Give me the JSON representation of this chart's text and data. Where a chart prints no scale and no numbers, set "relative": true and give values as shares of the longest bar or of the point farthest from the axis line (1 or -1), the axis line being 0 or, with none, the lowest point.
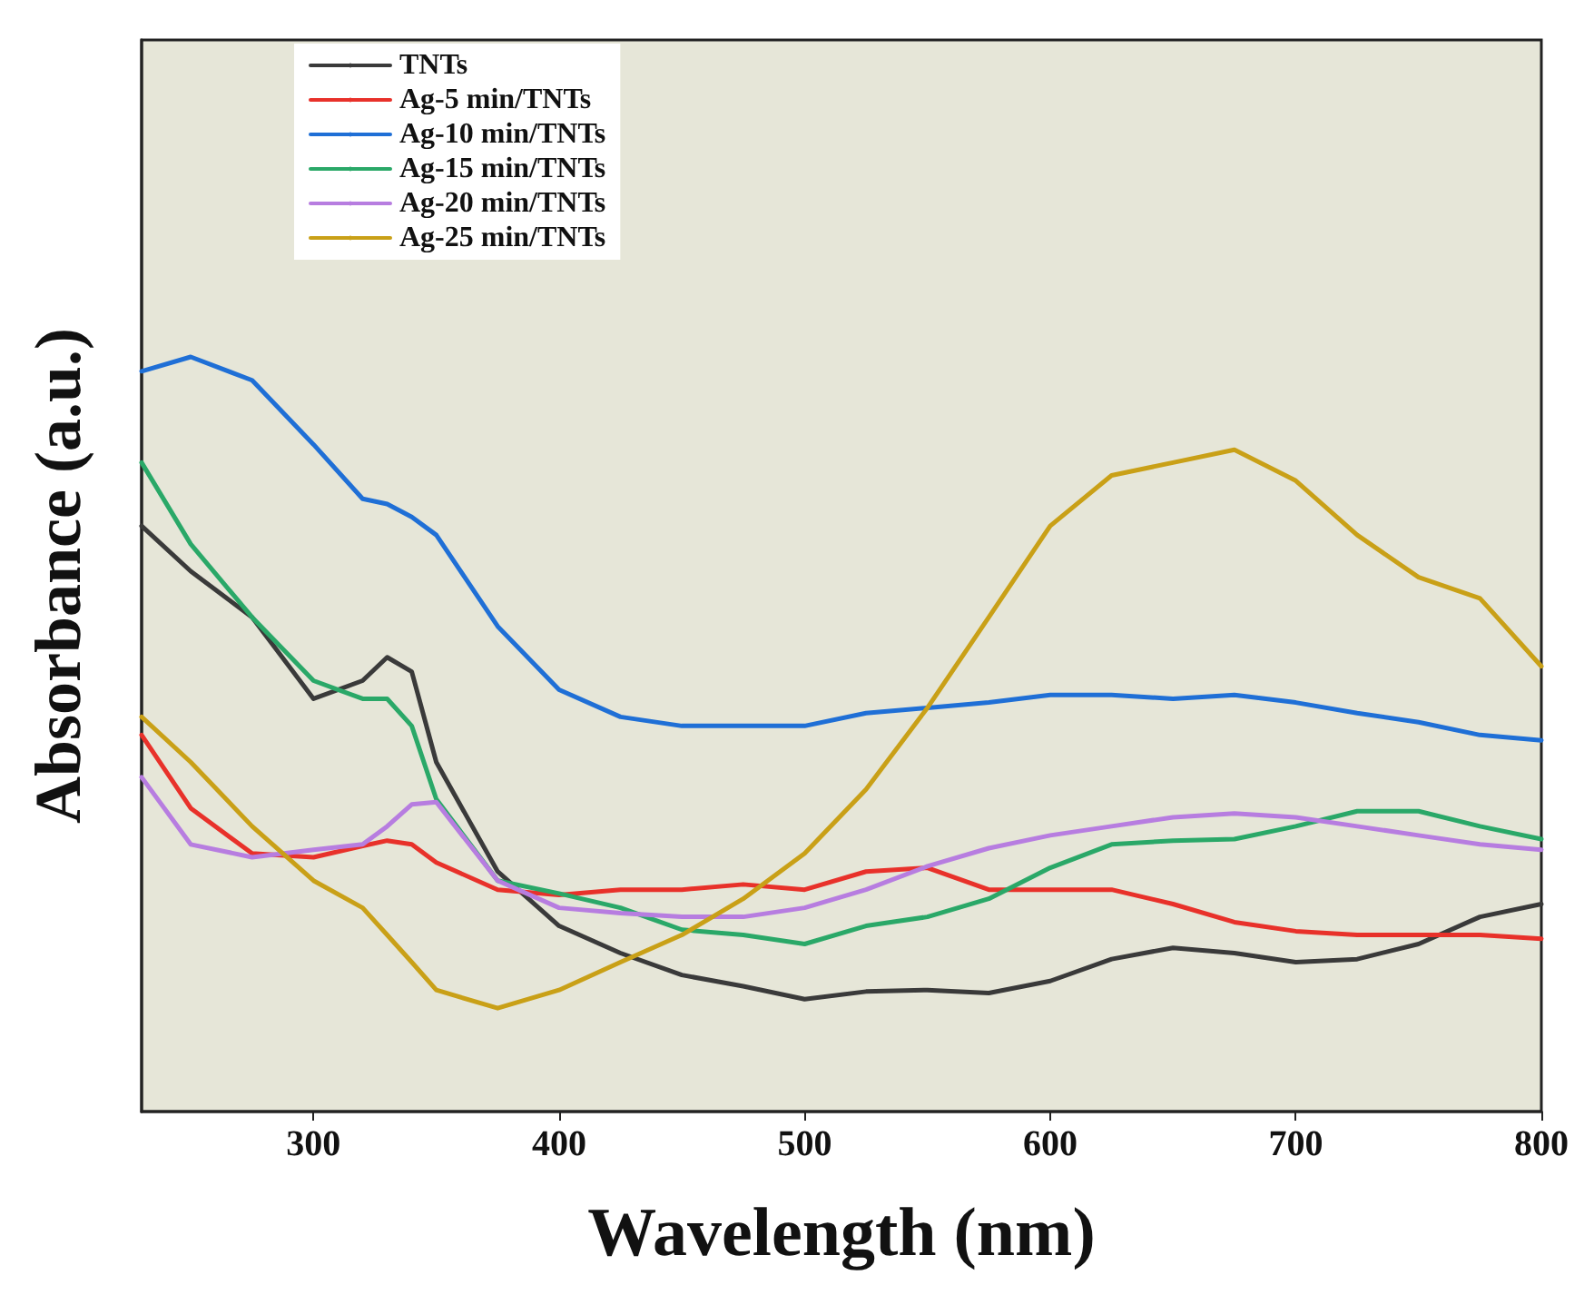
{
  "chart_data": {
    "type": "line",
    "relative": true,
    "xlabel": "Wavelength (nm)",
    "ylabel": "Absorbance (a.u.)",
    "x": [
      230,
      250,
      275,
      300,
      320,
      330,
      340,
      350,
      375,
      400,
      425,
      450,
      475,
      500,
      525,
      550,
      575,
      600,
      625,
      650,
      675,
      700,
      725,
      750,
      775,
      800
    ],
    "xlim": [
      230,
      800
    ],
    "xticks": [
      300,
      400,
      500,
      600,
      700,
      800
    ],
    "legend": "top left",
    "grid": false,
    "marker": "none",
    "line_style": "solid",
    "series": [
      {
        "name": "TNTs",
        "color": "#3a3a3a",
        "values": [
          0.776,
          0.716,
          0.655,
          0.547,
          0.571,
          0.602,
          0.583,
          0.463,
          0.318,
          0.246,
          0.21,
          0.181,
          0.166,
          0.149,
          0.159,
          0.161,
          0.157,
          0.173,
          0.202,
          0.217,
          0.21,
          0.198,
          0.202,
          0.222,
          0.258,
          0.275
        ]
      },
      {
        "name": "Ag-5 min/TNTs",
        "color": "#e8312a",
        "values": [
          0.499,
          0.402,
          0.342,
          0.337,
          0.352,
          0.359,
          0.354,
          0.33,
          0.294,
          0.287,
          0.294,
          0.294,
          0.301,
          0.294,
          0.318,
          0.323,
          0.294,
          0.294,
          0.294,
          0.275,
          0.251,
          0.239,
          0.234,
          0.234,
          0.234,
          0.229
        ]
      },
      {
        "name": "Ag-10 min/TNTs",
        "color": "#1f6fd6",
        "values": [
          0.981,
          1.0,
          0.969,
          0.884,
          0.812,
          0.805,
          0.788,
          0.764,
          0.643,
          0.559,
          0.523,
          0.511,
          0.511,
          0.511,
          0.528,
          0.535,
          0.542,
          0.552,
          0.552,
          0.547,
          0.552,
          0.542,
          0.528,
          0.516,
          0.499,
          0.492
        ]
      },
      {
        "name": "Ag-15 min/TNTs",
        "color": "#2aa868",
        "values": [
          0.86,
          0.752,
          0.655,
          0.571,
          0.547,
          0.547,
          0.511,
          0.414,
          0.306,
          0.289,
          0.27,
          0.241,
          0.234,
          0.222,
          0.246,
          0.258,
          0.282,
          0.323,
          0.354,
          0.359,
          0.361,
          0.378,
          0.398,
          0.398,
          0.378,
          0.361
        ]
      },
      {
        "name": "Ag-20 min/TNTs",
        "color": "#b77de0",
        "values": [
          0.443,
          0.354,
          0.337,
          0.347,
          0.354,
          0.378,
          0.407,
          0.41,
          0.306,
          0.27,
          0.263,
          0.258,
          0.258,
          0.27,
          0.294,
          0.325,
          0.349,
          0.366,
          0.378,
          0.39,
          0.395,
          0.39,
          0.378,
          0.366,
          0.354,
          0.347
        ]
      },
      {
        "name": "Ag-25 min/TNTs",
        "color": "#c9a017",
        "values": [
          0.523,
          0.463,
          0.378,
          0.306,
          0.27,
          0.234,
          0.198,
          0.161,
          0.137,
          0.161,
          0.198,
          0.234,
          0.282,
          0.342,
          0.427,
          0.535,
          0.655,
          0.776,
          0.843,
          0.86,
          0.877,
          0.836,
          0.764,
          0.708,
          0.68,
          0.59
        ]
      }
    ]
  }
}
